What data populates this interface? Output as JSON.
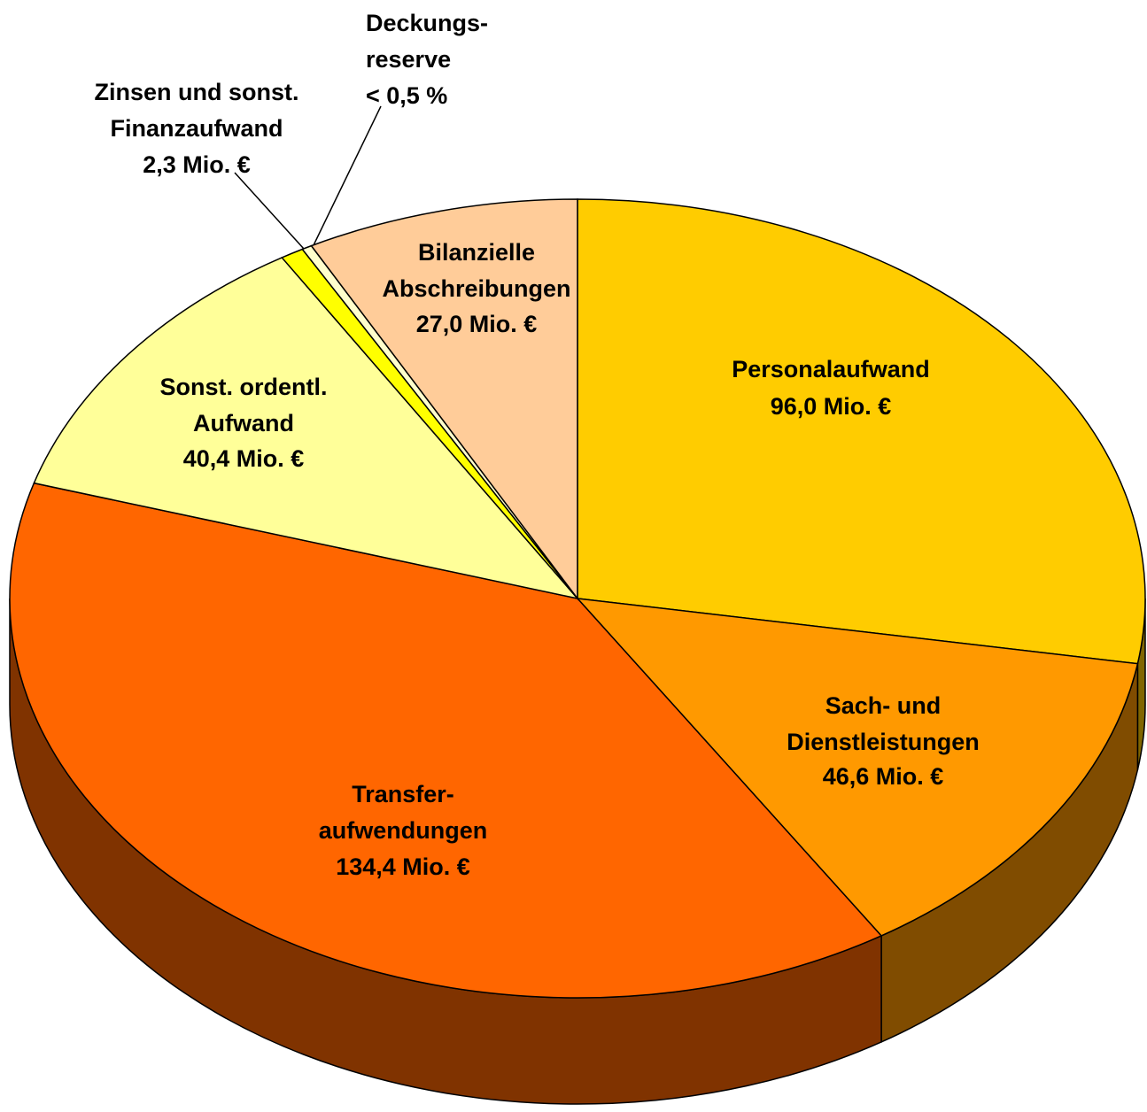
{
  "chart_data": {
    "type": "pie3d",
    "categories": [
      "Personalaufwand",
      "Sach- und\nDienstleistungen",
      "Transfer-\naufwendungen",
      "Sonst. ordentl.\nAufwand",
      "Zinsen und sonst.\nFinanzaufwand",
      "Deckungs-\nreserve",
      "Bilanzielle\nAbschreibungen"
    ],
    "values": [
      96.0,
      46.6,
      134.4,
      40.4,
      2.3,
      1.0,
      27.0
    ],
    "value_labels": [
      "96,0 Mio. €",
      "46,6 Mio. €",
      "134,4 Mio. €",
      "40,4 Mio. €",
      "2,3 Mio. €",
      "< 0,5 %",
      "27,0 Mio. €"
    ],
    "colors": [
      "#ffcc00",
      "#ff9900",
      "#ff6600",
      "#ffff99",
      "#ffff00",
      "#ffffcc",
      "#ffcc99"
    ],
    "side_colors": [
      "#806600",
      "#804c00",
      "#803300",
      "#808050",
      "#808000",
      "#808066",
      "#80664d"
    ]
  }
}
